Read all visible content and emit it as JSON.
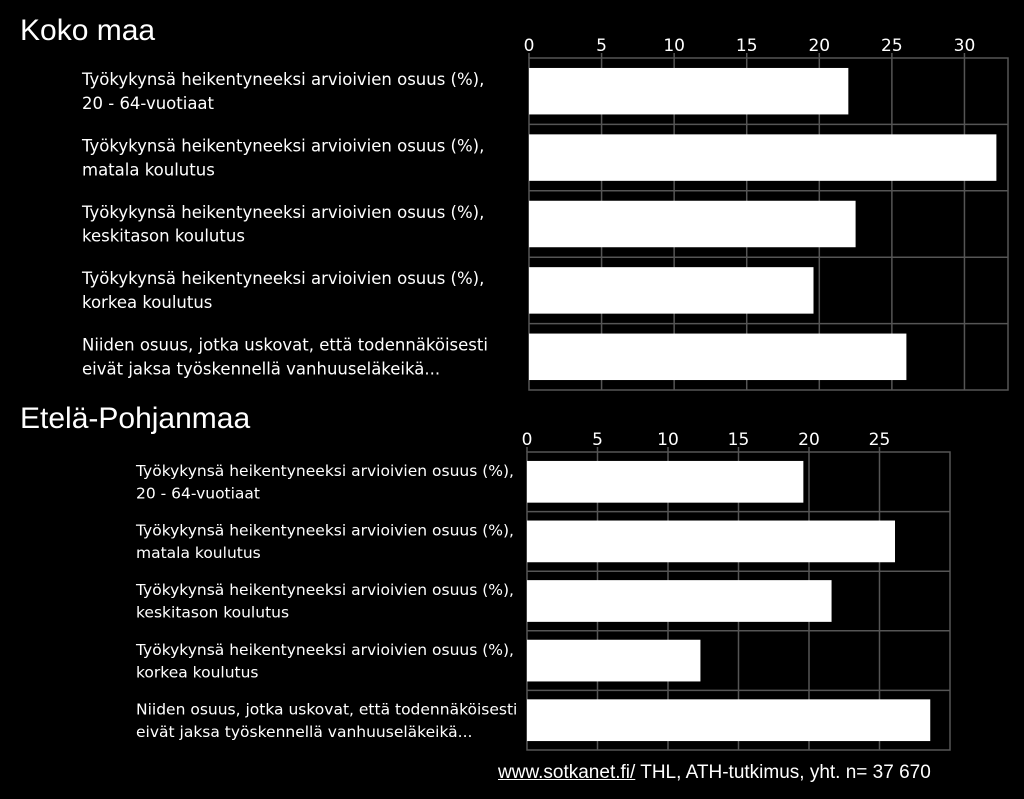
{
  "chart_data": [
    {
      "type": "bar",
      "orientation": "horizontal",
      "title": "Koko maa",
      "xlim": [
        0,
        33
      ],
      "xticks": [
        0,
        5,
        10,
        15,
        20,
        25,
        30
      ],
      "grid": true,
      "categories": [
        [
          "Työkykynsä heikentyneeksi arvioivien osuus (%),",
          "20 - 64-vuotiaat"
        ],
        [
          "Työkykynsä heikentyneeksi arvioivien osuus (%),",
          "matala koulutus"
        ],
        [
          "Työkykynsä heikentyneeksi arvioivien osuus (%),",
          "keskitason koulutus"
        ],
        [
          "Työkykynsä heikentyneeksi arvioivien osuus (%),",
          "korkea koulutus"
        ],
        [
          "Niiden osuus, jotka uskovat, että todennäköisesti",
          "eivät jaksa työskennellä vanhuuseläkeikä..."
        ]
      ],
      "values": [
        22,
        32.2,
        22.5,
        19.6,
        26
      ]
    },
    {
      "type": "bar",
      "orientation": "horizontal",
      "title": "Etelä-Pohjanmaa",
      "xlim": [
        0,
        30
      ],
      "xticks": [
        0,
        5,
        10,
        15,
        20,
        25
      ],
      "grid": true,
      "categories": [
        [
          "Työkykynsä heikentyneeksi arvioivien osuus (%),",
          "20 - 64-vuotiaat"
        ],
        [
          "Työkykynsä heikentyneeksi arvioivien osuus (%),",
          "matala koulutus"
        ],
        [
          "Työkykynsä heikentyneeksi arvioivien osuus (%),",
          "keskitason koulutus"
        ],
        [
          "Työkykynsä heikentyneeksi arvioivien osuus (%),",
          "korkea koulutus"
        ],
        [
          "Niiden osuus, jotka uskovat, että todennäköisesti",
          "eivät jaksa työskennellä vanhuuseläkeikä..."
        ]
      ],
      "values": [
        19.6,
        26.1,
        21.6,
        12.3,
        28.6
      ]
    }
  ],
  "source": {
    "link": "www.sotkanet.fi/",
    "text": " THL, ATH-tutkimus, yht. n= 37 670"
  },
  "colors": {
    "background": "#000000",
    "bar": "#ffffff",
    "grid": "#555555",
    "text": "#ffffff"
  }
}
